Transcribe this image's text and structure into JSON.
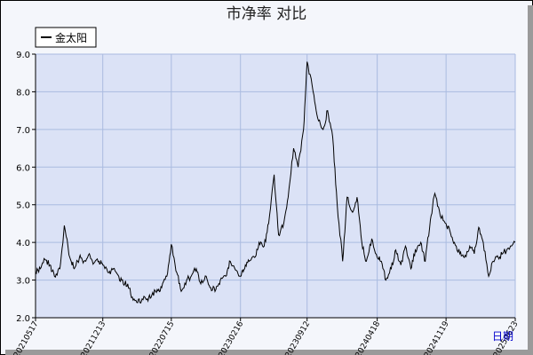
{
  "chart_data": {
    "type": "line",
    "title": "市净率  对比",
    "xlabel": "日期",
    "ylabel": "",
    "ylim": [
      2.0,
      9.0
    ],
    "yticks": [
      "2.0",
      "3.0",
      "4.0",
      "5.0",
      "6.0",
      "7.0",
      "8.0",
      "9.0"
    ],
    "x_ticks": [
      "20210517",
      "20211213",
      "20220715",
      "20230216",
      "20230912",
      "20240418",
      "20241119",
      "20250623"
    ],
    "legend": {
      "position": "top-left",
      "entries": [
        "金太阳"
      ]
    },
    "grid": true,
    "colors": {
      "line": "#000000",
      "plot_bg": "#dbe2f6",
      "grid": "#aabbe0"
    },
    "series": [
      {
        "name": "金太阳",
        "x": [
          "20210517",
          "20210601",
          "20210615",
          "20210701",
          "20210715",
          "20210801",
          "20210815",
          "20210901",
          "20210915",
          "20211001",
          "20211015",
          "20211101",
          "20211115",
          "20211201",
          "20211213",
          "20220101",
          "20220115",
          "20220201",
          "20220215",
          "20220301",
          "20220315",
          "20220401",
          "20220415",
          "20220501",
          "20220515",
          "20220601",
          "20220615",
          "20220701",
          "20220715",
          "20220801",
          "20220815",
          "20220901",
          "20220915",
          "20221001",
          "20221015",
          "20221101",
          "20221115",
          "20221201",
          "20221215",
          "20230101",
          "20230115",
          "20230216",
          "20230301",
          "20230315",
          "20230401",
          "20230415",
          "20230501",
          "20230515",
          "20230601",
          "20230615",
          "20230701",
          "20230715",
          "20230801",
          "20230815",
          "20230901",
          "20230912",
          "20231001",
          "20231015",
          "20231101",
          "20231115",
          "20231201",
          "20231215",
          "20240101",
          "20240115",
          "20240201",
          "20240215",
          "20240301",
          "20240315",
          "20240401",
          "20240418",
          "20240501",
          "20240515",
          "20240601",
          "20240615",
          "20240701",
          "20240715",
          "20240801",
          "20240815",
          "20240901",
          "20240915",
          "20241001",
          "20241015",
          "20241101",
          "20241119",
          "20241201",
          "20241215",
          "20250101",
          "20250115",
          "20250201",
          "20250215",
          "20250301",
          "20250315",
          "20250401",
          "20250415",
          "20250501",
          "20250515",
          "20250601",
          "20250623"
        ],
        "values": [
          3.2,
          3.3,
          3.55,
          3.4,
          3.1,
          3.3,
          4.45,
          3.6,
          3.3,
          3.6,
          3.5,
          3.7,
          3.45,
          3.5,
          3.4,
          3.2,
          3.3,
          3.1,
          2.9,
          2.9,
          2.55,
          2.4,
          2.5,
          2.5,
          2.6,
          2.75,
          2.8,
          3.1,
          3.95,
          3.2,
          2.7,
          3.0,
          3.1,
          3.3,
          2.9,
          3.1,
          2.8,
          2.75,
          3.0,
          3.1,
          3.5,
          3.1,
          3.3,
          3.5,
          3.6,
          4.0,
          3.9,
          4.5,
          5.8,
          4.2,
          4.5,
          5.2,
          6.5,
          6.0,
          7.0,
          8.8,
          8.0,
          7.3,
          7.0,
          7.5,
          6.8,
          5.0,
          3.5,
          5.2,
          4.8,
          5.2,
          4.0,
          3.5,
          4.1,
          3.6,
          3.5,
          3.0,
          3.3,
          3.8,
          3.4,
          3.9,
          3.3,
          3.8,
          4.0,
          3.5,
          4.6,
          5.3,
          4.7,
          4.5,
          4.3,
          4.0,
          3.7,
          3.6,
          3.9,
          3.7,
          4.4,
          4.0,
          3.1,
          3.5,
          3.6,
          3.7,
          3.85,
          4.0
        ]
      }
    ]
  }
}
